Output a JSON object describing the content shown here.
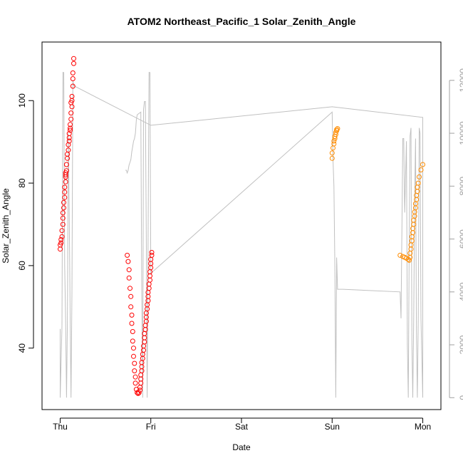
{
  "chart_data": {
    "type": "scatter",
    "title": "ATOM2 Northeast_Pacific_1 Solar_Zenith_Angle",
    "xlabel": "Date",
    "ylabel": "Solar_Zenith_Angle",
    "x_ticks": [
      {
        "day": 0,
        "label": "Thu"
      },
      {
        "day": 1,
        "label": "Fri"
      },
      {
        "day": 2,
        "label": "Sat"
      },
      {
        "day": 3,
        "label": "Sun"
      },
      {
        "day": 4,
        "label": "Mon"
      }
    ],
    "xlim": [
      -0.2,
      4.2
    ],
    "y_left": {
      "ticks": [
        40,
        60,
        80,
        100
      ],
      "lim": [
        25.1,
        114.2
      ]
    },
    "y_right": {
      "ticks": [
        0,
        2000,
        4000,
        6000,
        8000,
        10000,
        12000
      ],
      "lim": [
        -450,
        13450
      ],
      "color": "#a0a0a0"
    },
    "colors": {
      "red": "#ff0000",
      "orange": "#ff8c00",
      "line": "#c0c0c0",
      "axis": "#000000"
    },
    "series": [
      {
        "color": "red",
        "axis": "left",
        "points": [
          [
            0.0,
            64.0
          ],
          [
            0.0,
            65.0
          ],
          [
            0.01,
            65.5
          ],
          [
            0.01,
            66.3
          ],
          [
            0.02,
            67.0
          ],
          [
            0.02,
            68.5
          ],
          [
            0.03,
            70.0
          ],
          [
            0.03,
            71.5
          ],
          [
            0.03,
            72.8
          ],
          [
            0.04,
            74.0
          ],
          [
            0.04,
            75.3
          ],
          [
            0.05,
            76.5
          ],
          [
            0.05,
            77.8
          ],
          [
            0.05,
            79.0
          ],
          [
            0.06,
            80.3
          ],
          [
            0.06,
            81.5
          ],
          [
            0.06,
            82.0
          ],
          [
            0.06,
            82.5
          ],
          [
            0.07,
            83.0
          ],
          [
            0.07,
            84.5
          ],
          [
            0.08,
            86.0
          ],
          [
            0.08,
            87.0
          ],
          [
            0.09,
            88.0
          ],
          [
            0.09,
            89.3
          ],
          [
            0.1,
            90.2
          ],
          [
            0.1,
            91.0
          ],
          [
            0.1,
            92.0
          ],
          [
            0.11,
            92.8
          ],
          [
            0.11,
            93.3
          ],
          [
            0.11,
            94.2
          ],
          [
            0.12,
            95.5
          ],
          [
            0.12,
            97.0
          ],
          [
            0.13,
            98.5
          ],
          [
            0.13,
            100.0
          ],
          [
            0.13,
            101.0
          ],
          [
            0.12,
            99.5
          ],
          [
            0.14,
            103.5
          ],
          [
            0.14,
            105.3
          ],
          [
            0.14,
            106.7
          ],
          [
            0.15,
            109.0
          ],
          [
            0.15,
            110.2
          ],
          [
            0.74,
            62.5
          ],
          [
            0.75,
            61.0
          ],
          [
            0.76,
            59.0
          ],
          [
            0.76,
            57.0
          ],
          [
            0.77,
            54.5
          ],
          [
            0.78,
            52.5
          ],
          [
            0.78,
            50.0
          ],
          [
            0.79,
            48.0
          ],
          [
            0.79,
            46.0
          ],
          [
            0.8,
            44.0
          ],
          [
            0.8,
            41.7
          ],
          [
            0.81,
            40.0
          ],
          [
            0.81,
            38.0
          ],
          [
            0.82,
            36.3
          ],
          [
            0.82,
            34.5
          ],
          [
            0.83,
            33.0
          ],
          [
            0.83,
            31.5
          ],
          [
            0.84,
            30.0
          ],
          [
            0.85,
            29.2
          ],
          [
            0.86,
            29.0
          ],
          [
            0.87,
            29.2
          ],
          [
            0.88,
            29.8
          ],
          [
            0.88,
            30.5
          ],
          [
            0.89,
            31.5
          ],
          [
            0.89,
            32.5
          ],
          [
            0.89,
            33.5
          ],
          [
            0.9,
            34.5
          ],
          [
            0.9,
            35.5
          ],
          [
            0.9,
            36.5
          ],
          [
            0.91,
            37.5
          ],
          [
            0.91,
            38.5
          ],
          [
            0.92,
            39.5
          ],
          [
            0.92,
            40.5
          ],
          [
            0.93,
            41.5
          ],
          [
            0.93,
            42.5
          ],
          [
            0.93,
            43.5
          ],
          [
            0.94,
            44.5
          ],
          [
            0.94,
            45.5
          ],
          [
            0.95,
            46.5
          ],
          [
            0.95,
            47.5
          ],
          [
            0.95,
            48.5
          ],
          [
            0.96,
            49.5
          ],
          [
            0.96,
            50.5
          ],
          [
            0.97,
            51.5
          ],
          [
            0.97,
            52.5
          ],
          [
            0.97,
            53.5
          ],
          [
            0.98,
            54.5
          ],
          [
            0.98,
            55.5
          ],
          [
            0.99,
            56.5
          ],
          [
            0.99,
            57.5
          ],
          [
            0.99,
            58.5
          ],
          [
            1.0,
            59.5
          ],
          [
            1.0,
            60.5
          ],
          [
            1.0,
            61.5
          ],
          [
            1.01,
            62.5
          ],
          [
            1.01,
            63.2
          ]
        ]
      },
      {
        "color": "orange",
        "axis": "left",
        "points": [
          [
            3.0,
            86.0
          ],
          [
            3.0,
            87.3
          ],
          [
            3.01,
            88.5
          ],
          [
            3.02,
            89.5
          ],
          [
            3.02,
            90.2
          ],
          [
            3.03,
            90.8
          ],
          [
            3.03,
            91.3
          ],
          [
            3.04,
            91.8
          ],
          [
            3.04,
            92.3
          ],
          [
            3.05,
            92.7
          ],
          [
            3.05,
            93.0
          ],
          [
            3.06,
            93.2
          ],
          [
            3.75,
            62.5
          ],
          [
            3.78,
            62.2
          ],
          [
            3.8,
            62.0
          ],
          [
            3.82,
            61.8
          ],
          [
            3.84,
            61.5
          ],
          [
            3.85,
            61.3
          ],
          [
            3.86,
            62.0
          ],
          [
            3.86,
            63.0
          ],
          [
            3.87,
            64.0
          ],
          [
            3.87,
            65.0
          ],
          [
            3.88,
            66.0
          ],
          [
            3.88,
            67.0
          ],
          [
            3.89,
            68.0
          ],
          [
            3.89,
            69.0
          ],
          [
            3.9,
            70.0
          ],
          [
            3.9,
            71.0
          ],
          [
            3.91,
            72.0
          ],
          [
            3.91,
            73.0
          ],
          [
            3.92,
            74.0
          ],
          [
            3.92,
            75.0
          ],
          [
            3.93,
            76.0
          ],
          [
            3.93,
            77.0
          ],
          [
            3.94,
            78.0
          ],
          [
            3.94,
            79.0
          ],
          [
            3.95,
            80.0
          ],
          [
            3.96,
            81.5
          ],
          [
            3.98,
            83.2
          ],
          [
            4.0,
            84.5
          ]
        ]
      }
    ],
    "line": {
      "color": "line",
      "axis": "right",
      "points": [
        [
          0.0,
          2600
        ],
        [
          0.0,
          0
        ],
        [
          0.02,
          2700
        ],
        [
          0.03,
          12300
        ],
        [
          0.04,
          12300
        ],
        [
          0.05,
          5000
        ],
        [
          0.06,
          3000
        ],
        [
          0.07,
          0
        ],
        [
          0.08,
          2800
        ],
        [
          0.09,
          10000
        ],
        [
          0.1,
          7000
        ],
        [
          0.11,
          3000
        ],
        [
          0.12,
          0
        ],
        [
          0.13,
          4000
        ],
        [
          0.14,
          12000
        ],
        [
          0.15,
          11800
        ],
        [
          1.0,
          10300
        ],
        [
          3.0,
          11000
        ],
        [
          4.0,
          10600
        ],
        [
          4.0,
          0
        ],
        [
          3.98,
          3000
        ],
        [
          3.97,
          10000
        ],
        [
          3.96,
          10200
        ],
        [
          3.95,
          3000
        ],
        [
          3.94,
          0
        ],
        [
          3.93,
          2500
        ],
        [
          3.92,
          9800
        ],
        [
          3.91,
          7500
        ],
        [
          3.9,
          3000
        ],
        [
          3.89,
          0
        ],
        [
          3.88,
          2000
        ],
        [
          3.87,
          10200
        ],
        [
          3.86,
          9900
        ],
        [
          3.85,
          6000
        ],
        [
          3.84,
          0
        ],
        [
          3.83,
          2000
        ],
        [
          3.82,
          9700
        ],
        [
          3.8,
          7000
        ],
        [
          3.79,
          9800
        ],
        [
          3.78,
          9800
        ],
        [
          3.76,
          3000
        ],
        [
          3.75,
          4000
        ],
        [
          3.12,
          4100
        ],
        [
          3.06,
          4100
        ],
        [
          3.05,
          5300
        ],
        [
          3.04,
          0
        ],
        [
          3.03,
          5000
        ],
        [
          3.02,
          8000
        ],
        [
          3.01,
          9000
        ],
        [
          3.0,
          10800
        ],
        [
          1.0,
          4700
        ],
        [
          0.99,
          12300
        ],
        [
          0.98,
          12300
        ],
        [
          0.97,
          6000
        ],
        [
          0.96,
          0
        ],
        [
          0.95,
          6000
        ],
        [
          0.94,
          11200
        ],
        [
          0.93,
          11200
        ],
        [
          0.92,
          10900
        ],
        [
          0.91,
          0
        ],
        [
          0.9,
          4000
        ],
        [
          0.89,
          10800
        ],
        [
          0.85,
          10700
        ],
        [
          0.84,
          10500
        ],
        [
          0.83,
          10000
        ],
        [
          0.82,
          9800
        ],
        [
          0.81,
          9700
        ],
        [
          0.8,
          9500
        ],
        [
          0.79,
          9300
        ],
        [
          0.78,
          9000
        ],
        [
          0.77,
          8900
        ],
        [
          0.76,
          8800
        ],
        [
          0.75,
          8600
        ],
        [
          0.74,
          8500
        ],
        [
          0.73,
          8600
        ],
        [
          0.72,
          8600
        ]
      ]
    }
  }
}
